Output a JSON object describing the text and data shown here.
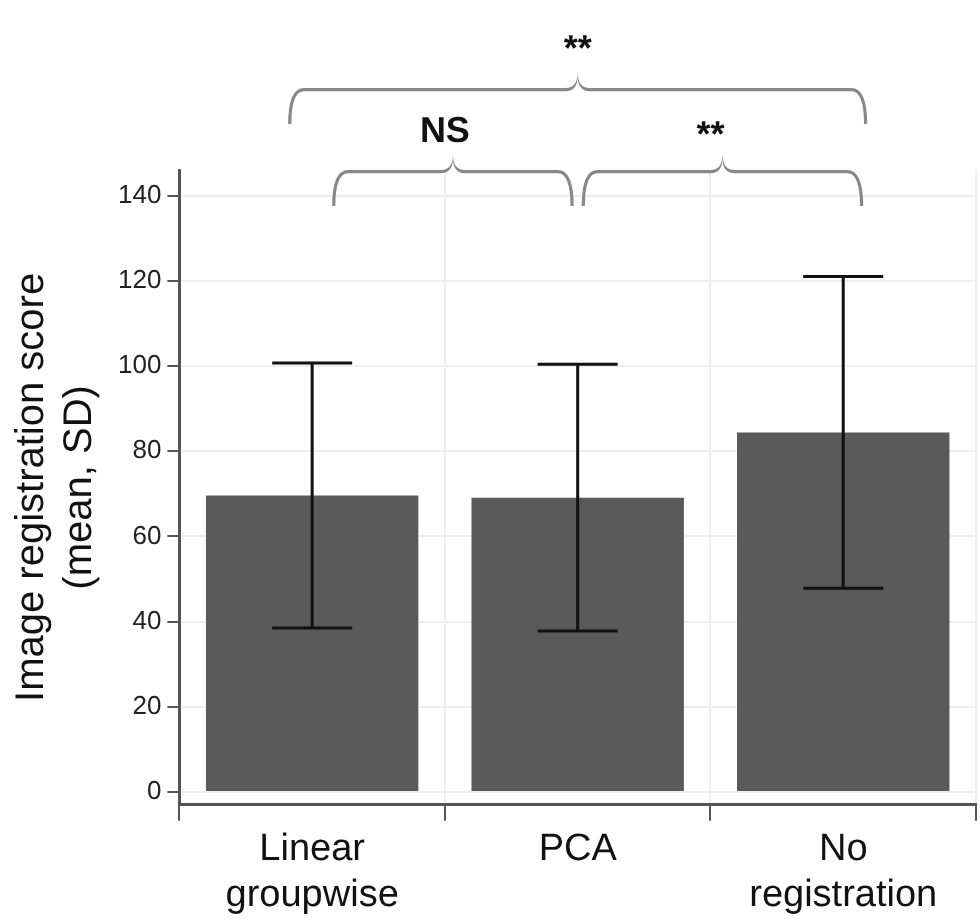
{
  "chart_data": {
    "type": "bar",
    "ylabel": "Image registration score (mean, SD)",
    "categories": [
      "Linear groupwise",
      "PCA",
      "No registration"
    ],
    "values": [
      69.6,
      69.1,
      84.4
    ],
    "errors": [
      31.1,
      31.3,
      36.6
    ],
    "color": "#5a5a5a",
    "ylim": [
      -3,
      146
    ],
    "yticks": [
      0,
      20,
      40,
      60,
      80,
      100,
      120,
      140
    ],
    "grid": true,
    "legend": false,
    "annotations": [
      "**",
      "NS",
      "**"
    ]
  }
}
